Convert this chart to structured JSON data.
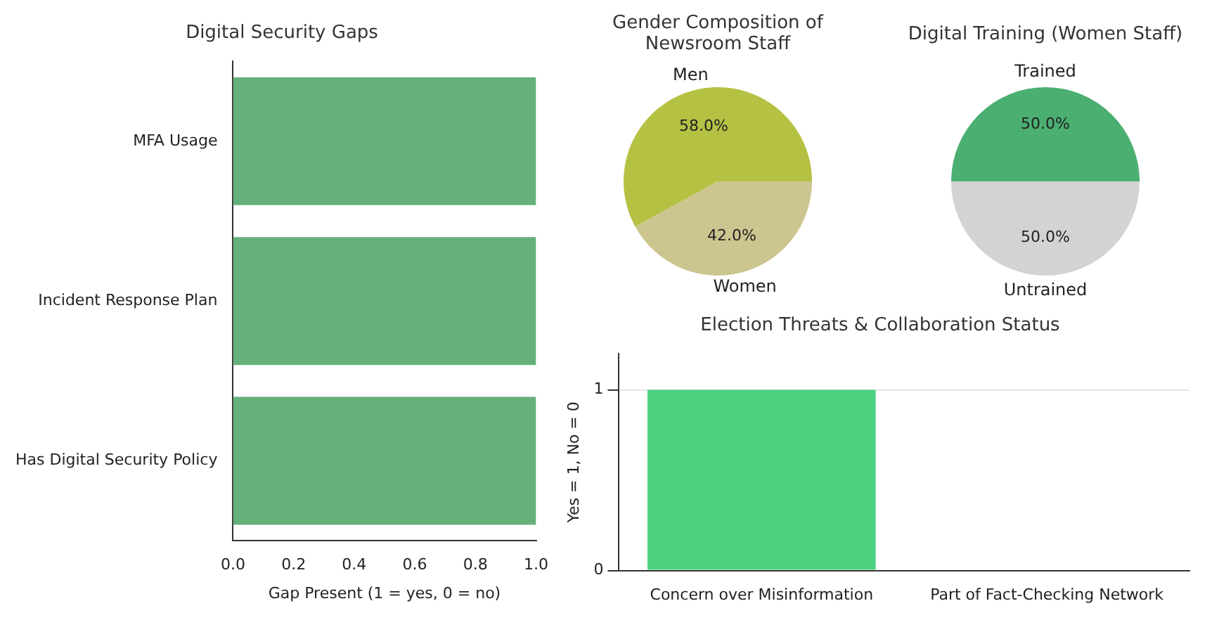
{
  "chart_data": [
    {
      "type": "bar",
      "orientation": "horizontal",
      "title": "Digital Security Gaps",
      "xlabel": "Gap Present (1 = yes, 0 = no)",
      "categories": [
        "MFA Usage",
        "Incident Response Plan",
        "Has Digital Security Policy"
      ],
      "values": [
        1,
        1,
        1
      ],
      "color": "#66b07a",
      "xlim": [
        0,
        1
      ],
      "xticks": [
        {
          "value": 0,
          "label": "0.0"
        },
        {
          "value": 0.2,
          "label": "0.2"
        },
        {
          "value": 0.4,
          "label": "0.4"
        },
        {
          "value": 0.6,
          "label": "0.6"
        },
        {
          "value": 0.8,
          "label": "0.8"
        },
        {
          "value": 1,
          "label": "1.0"
        }
      ],
      "grid": false,
      "legend": false
    },
    {
      "type": "pie",
      "title": "Gender Composition of Newsroom Staff",
      "categories": [
        "Men",
        "Women"
      ],
      "values": [
        58,
        42
      ],
      "colors": [
        "#b5c143",
        "#cdc58f"
      ],
      "value_labels": [
        "58.0%",
        "42.0%"
      ],
      "legend": false
    },
    {
      "type": "pie",
      "title": "Digital Training (Women Staff)",
      "categories": [
        "Trained",
        "Untrained"
      ],
      "values": [
        50,
        50
      ],
      "colors": [
        "#4caf72",
        "#d3d3d3"
      ],
      "value_labels": [
        "50.0%",
        "50.0%"
      ],
      "legend": false
    },
    {
      "type": "bar",
      "title": "Election Threats & Collaboration Status",
      "ylabel": "Yes = 1, No = 0",
      "categories": [
        "Concern over Misinformation",
        "Part of Fact-Checking Network"
      ],
      "values": [
        1,
        0
      ],
      "color": "#4cd080",
      "ylim": [
        0,
        1.2
      ],
      "yticks": [
        0,
        1
      ],
      "grid": "y",
      "legend": false
    }
  ]
}
